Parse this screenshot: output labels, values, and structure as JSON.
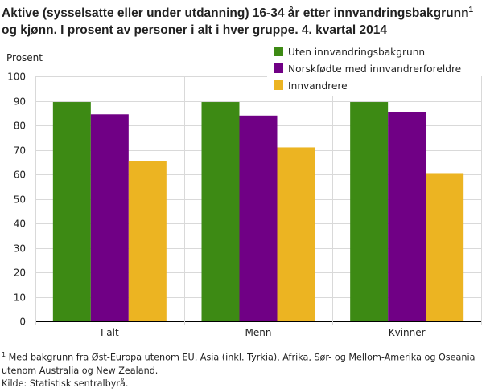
{
  "header": {
    "title": "Aktive (sysselsatte eller under utdanning) 16-34 år etter innvandringsbakgrunn",
    "title_sup": "1",
    "title_cont": " og kjønn. I prosent av personer i alt i hver gruppe. 4. kvartal 2014"
  },
  "chart_data": {
    "type": "bar",
    "title": "Aktive (sysselsatte eller under utdanning) 16-34 år etter innvandringsbakgrunn1 og kjønn. I prosent av personer i alt i hver gruppe. 4. kvartal 2014",
    "ylabel": "Prosent",
    "xlabel": "",
    "ylim": [
      0,
      100
    ],
    "yticks": [
      0,
      10,
      20,
      30,
      40,
      50,
      60,
      70,
      80,
      90,
      100
    ],
    "categories": [
      "I alt",
      "Menn",
      "Kvinner"
    ],
    "series": [
      {
        "name": "Uten innvandringsbakgrunn",
        "color": "#3d8a14",
        "values": [
          89.5,
          89.5,
          89.5
        ]
      },
      {
        "name": "Norskfødte med innvandrerforeldre",
        "color": "#700085",
        "values": [
          84.5,
          84,
          85.5
        ]
      },
      {
        "name": "Innvandrere",
        "color": "#ecb422",
        "values": [
          65.5,
          71,
          60.5
        ]
      }
    ],
    "legend_position": "top-right",
    "grid": true
  },
  "footer": {
    "footnote_sup": "1",
    "footnote": " Med bakgrunn fra Øst-Europa utenom EU, Asia (inkl. Tyrkia), Afrika, Sør- og Mellom-Amerika og Oseania utenom Australia og New Zealand.",
    "source": "Kilde: Statistisk sentralbyrå."
  }
}
